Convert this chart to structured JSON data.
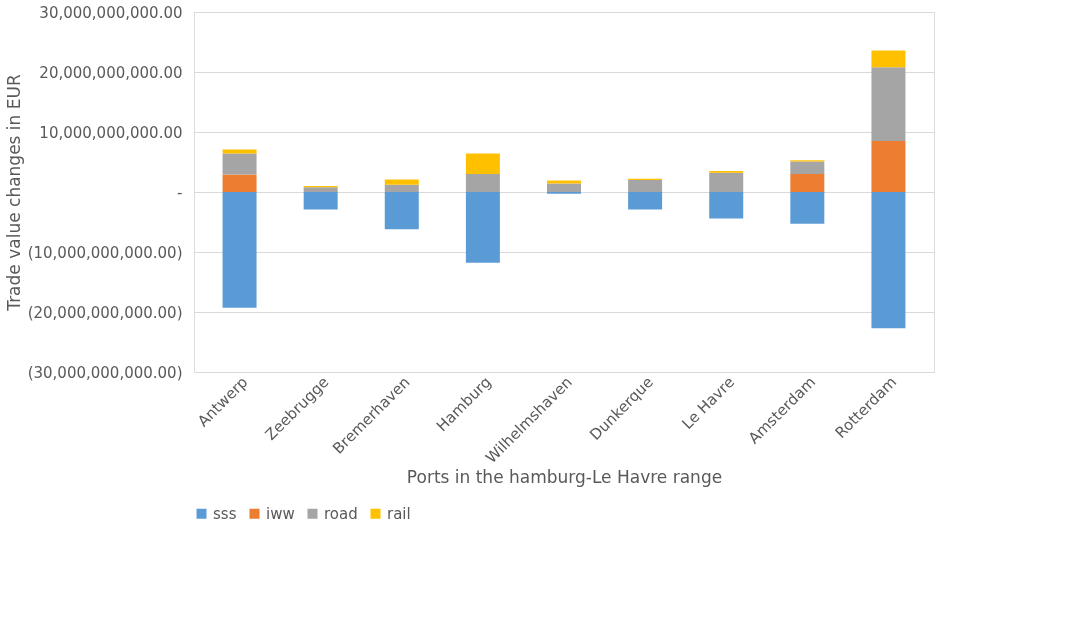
{
  "chart_data": {
    "type": "bar",
    "stacked": true,
    "xlabel": "Ports in the hamburg-Le Havre range",
    "ylabel": "Trade value changes in EUR",
    "categories": [
      "Antwerp",
      "Zeebrugge",
      "Bremerhaven",
      "Hamburg",
      "Wilhelmshaven",
      "Dunkerque",
      "Le Havre",
      "Amsterdam",
      "Rotterdam"
    ],
    "series": [
      {
        "name": "sss",
        "color": "#5b9bd5",
        "values": [
          -19300000000,
          -2900000000,
          -6200000000,
          -11800000000,
          -300000000,
          -2900000000,
          -4400000000,
          -5300000000,
          -22700000000
        ]
      },
      {
        "name": "iww",
        "color": "#ed7d31",
        "values": [
          2900000000,
          0,
          0,
          0,
          0,
          0,
          0,
          3000000000,
          8500000000
        ]
      },
      {
        "name": "road",
        "color": "#a5a5a5",
        "values": [
          3500000000,
          800000000,
          1200000000,
          3000000000,
          1400000000,
          2000000000,
          3200000000,
          2100000000,
          12300000000
        ]
      },
      {
        "name": "rail",
        "color": "#ffc000",
        "values": [
          700000000,
          200000000,
          900000000,
          3400000000,
          500000000,
          200000000,
          300000000,
          200000000,
          2800000000
        ]
      }
    ],
    "ylim": [
      -30000000000,
      30000000000
    ],
    "yticks": [
      {
        "value": -30000000000,
        "label": "(30,000,000,000.00)"
      },
      {
        "value": -20000000000,
        "label": "(20,000,000,000.00)"
      },
      {
        "value": -10000000000,
        "label": "(10,000,000,000.00)"
      },
      {
        "value": 0,
        "label": "-"
      },
      {
        "value": 10000000000,
        "label": "10,000,000,000.00"
      },
      {
        "value": 20000000000,
        "label": "20,000,000,000.00"
      },
      {
        "value": 30000000000,
        "label": "30,000,000,000.00"
      }
    ],
    "grid": "y",
    "legend": "bottom"
  }
}
